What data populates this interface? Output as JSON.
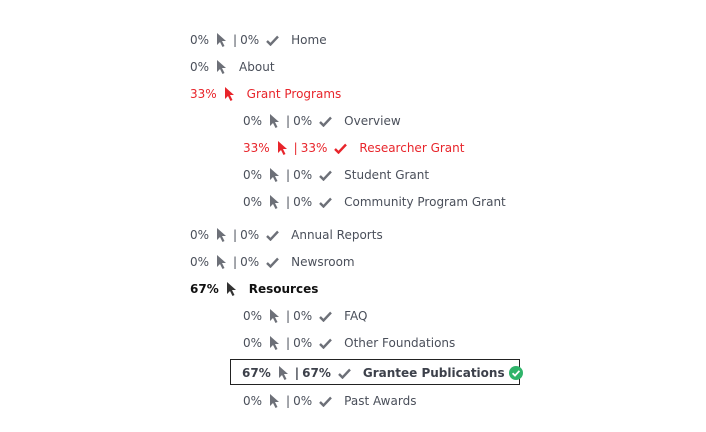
{
  "colors": {
    "default_text": "#4a4f5a",
    "icon_gray": "#6d7078",
    "active_red": "#e8252b",
    "bold_text": "#111111",
    "success_green": "#2fb46a"
  },
  "items": [
    {
      "clicks": "0%",
      "completion": "0%",
      "label": "Home",
      "state": "default"
    },
    {
      "clicks": "0%",
      "label": "About",
      "state": "default"
    },
    {
      "clicks": "33%",
      "label": "Grant Programs",
      "state": "red"
    },
    {
      "clicks": "0%",
      "completion": "0%",
      "label": "Overview",
      "state": "default"
    },
    {
      "clicks": "33%",
      "completion": "33%",
      "label": "Researcher Grant",
      "state": "red"
    },
    {
      "clicks": "0%",
      "completion": "0%",
      "label": "Student Grant",
      "state": "default"
    },
    {
      "clicks": "0%",
      "completion": "0%",
      "label": "Community Program Grant",
      "state": "default"
    },
    {
      "clicks": "0%",
      "completion": "0%",
      "label": "Annual Reports",
      "state": "default"
    },
    {
      "clicks": "0%",
      "completion": "0%",
      "label": "Newsroom",
      "state": "default"
    },
    {
      "clicks": "67%",
      "label": "Resources",
      "state": "bold"
    },
    {
      "clicks": "0%",
      "completion": "0%",
      "label": "FAQ",
      "state": "default"
    },
    {
      "clicks": "0%",
      "completion": "0%",
      "label": "Other Foundations",
      "state": "default"
    },
    {
      "clicks": "67%",
      "completion": "67%",
      "label": "Grantee Publications",
      "state": "selected"
    },
    {
      "clicks": "0%",
      "completion": "0%",
      "label": "Past Awards",
      "state": "default"
    }
  ],
  "separator": "|",
  "icons": {
    "cursor": "cursor-icon",
    "check": "check-icon",
    "done": "check-circle-icon"
  }
}
